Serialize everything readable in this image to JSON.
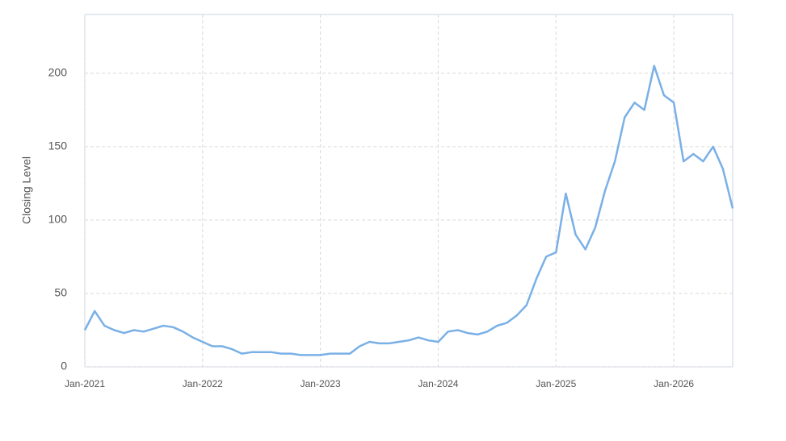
{
  "chart_data": {
    "type": "line",
    "y_label": "Closing Level",
    "x": [
      "2021-01",
      "2021-02",
      "2021-03",
      "2021-04",
      "2021-05",
      "2021-06",
      "2021-07",
      "2021-08",
      "2021-09",
      "2021-10",
      "2021-11",
      "2021-12",
      "2022-01",
      "2022-02",
      "2022-03",
      "2022-04",
      "2022-05",
      "2022-06",
      "2022-07",
      "2022-08",
      "2022-09",
      "2022-10",
      "2022-11",
      "2022-12",
      "2023-01",
      "2023-02",
      "2023-03",
      "2023-04",
      "2023-05",
      "2023-06",
      "2023-07",
      "2023-08",
      "2023-09",
      "2023-10",
      "2023-11",
      "2023-12",
      "2024-01",
      "2024-02",
      "2024-03",
      "2024-04",
      "2024-05",
      "2024-06",
      "2024-07",
      "2024-08",
      "2024-09",
      "2024-10",
      "2024-11",
      "2024-12",
      "2025-01",
      "2025-02",
      "2025-03",
      "2025-04",
      "2025-05",
      "2025-06",
      "2025-07",
      "2025-08",
      "2025-09",
      "2025-10",
      "2025-11",
      "2025-12",
      "2026-01",
      "2026-02",
      "2026-03",
      "2026-04",
      "2026-05",
      "2026-06",
      "2026-07"
    ],
    "series": [
      {
        "name": "Closing Level",
        "color": "#7ab0e6",
        "values": [
          25,
          38,
          28,
          25,
          23,
          25,
          24,
          26,
          28,
          27,
          24,
          20,
          17,
          14,
          14,
          12,
          9,
          10,
          10,
          10,
          9,
          9,
          8,
          8,
          8,
          9,
          9,
          9,
          14,
          17,
          16,
          16,
          17,
          18,
          20,
          18,
          17,
          24,
          25,
          23,
          22,
          24,
          28,
          30,
          35,
          42,
          60,
          75,
          78,
          118,
          90,
          80,
          95,
          120,
          140,
          170,
          180,
          175,
          205,
          185,
          180,
          140,
          145,
          140,
          150,
          135,
          108
        ]
      }
    ],
    "xlim": [
      "2021-01",
      "2026-07"
    ],
    "xticks": [
      {
        "value": "2021-01",
        "label": "Jan-2021"
      },
      {
        "value": "2022-01",
        "label": "Jan-2022"
      },
      {
        "value": "2023-01",
        "label": "Jan-2023"
      },
      {
        "value": "2024-01",
        "label": "Jan-2024"
      },
      {
        "value": "2025-01",
        "label": "Jan-2025"
      },
      {
        "value": "2026-01",
        "label": "Jan-2026"
      }
    ],
    "ylim": [
      0,
      240
    ],
    "yticks": [
      0,
      50,
      100,
      150,
      200
    ],
    "grid": true
  }
}
